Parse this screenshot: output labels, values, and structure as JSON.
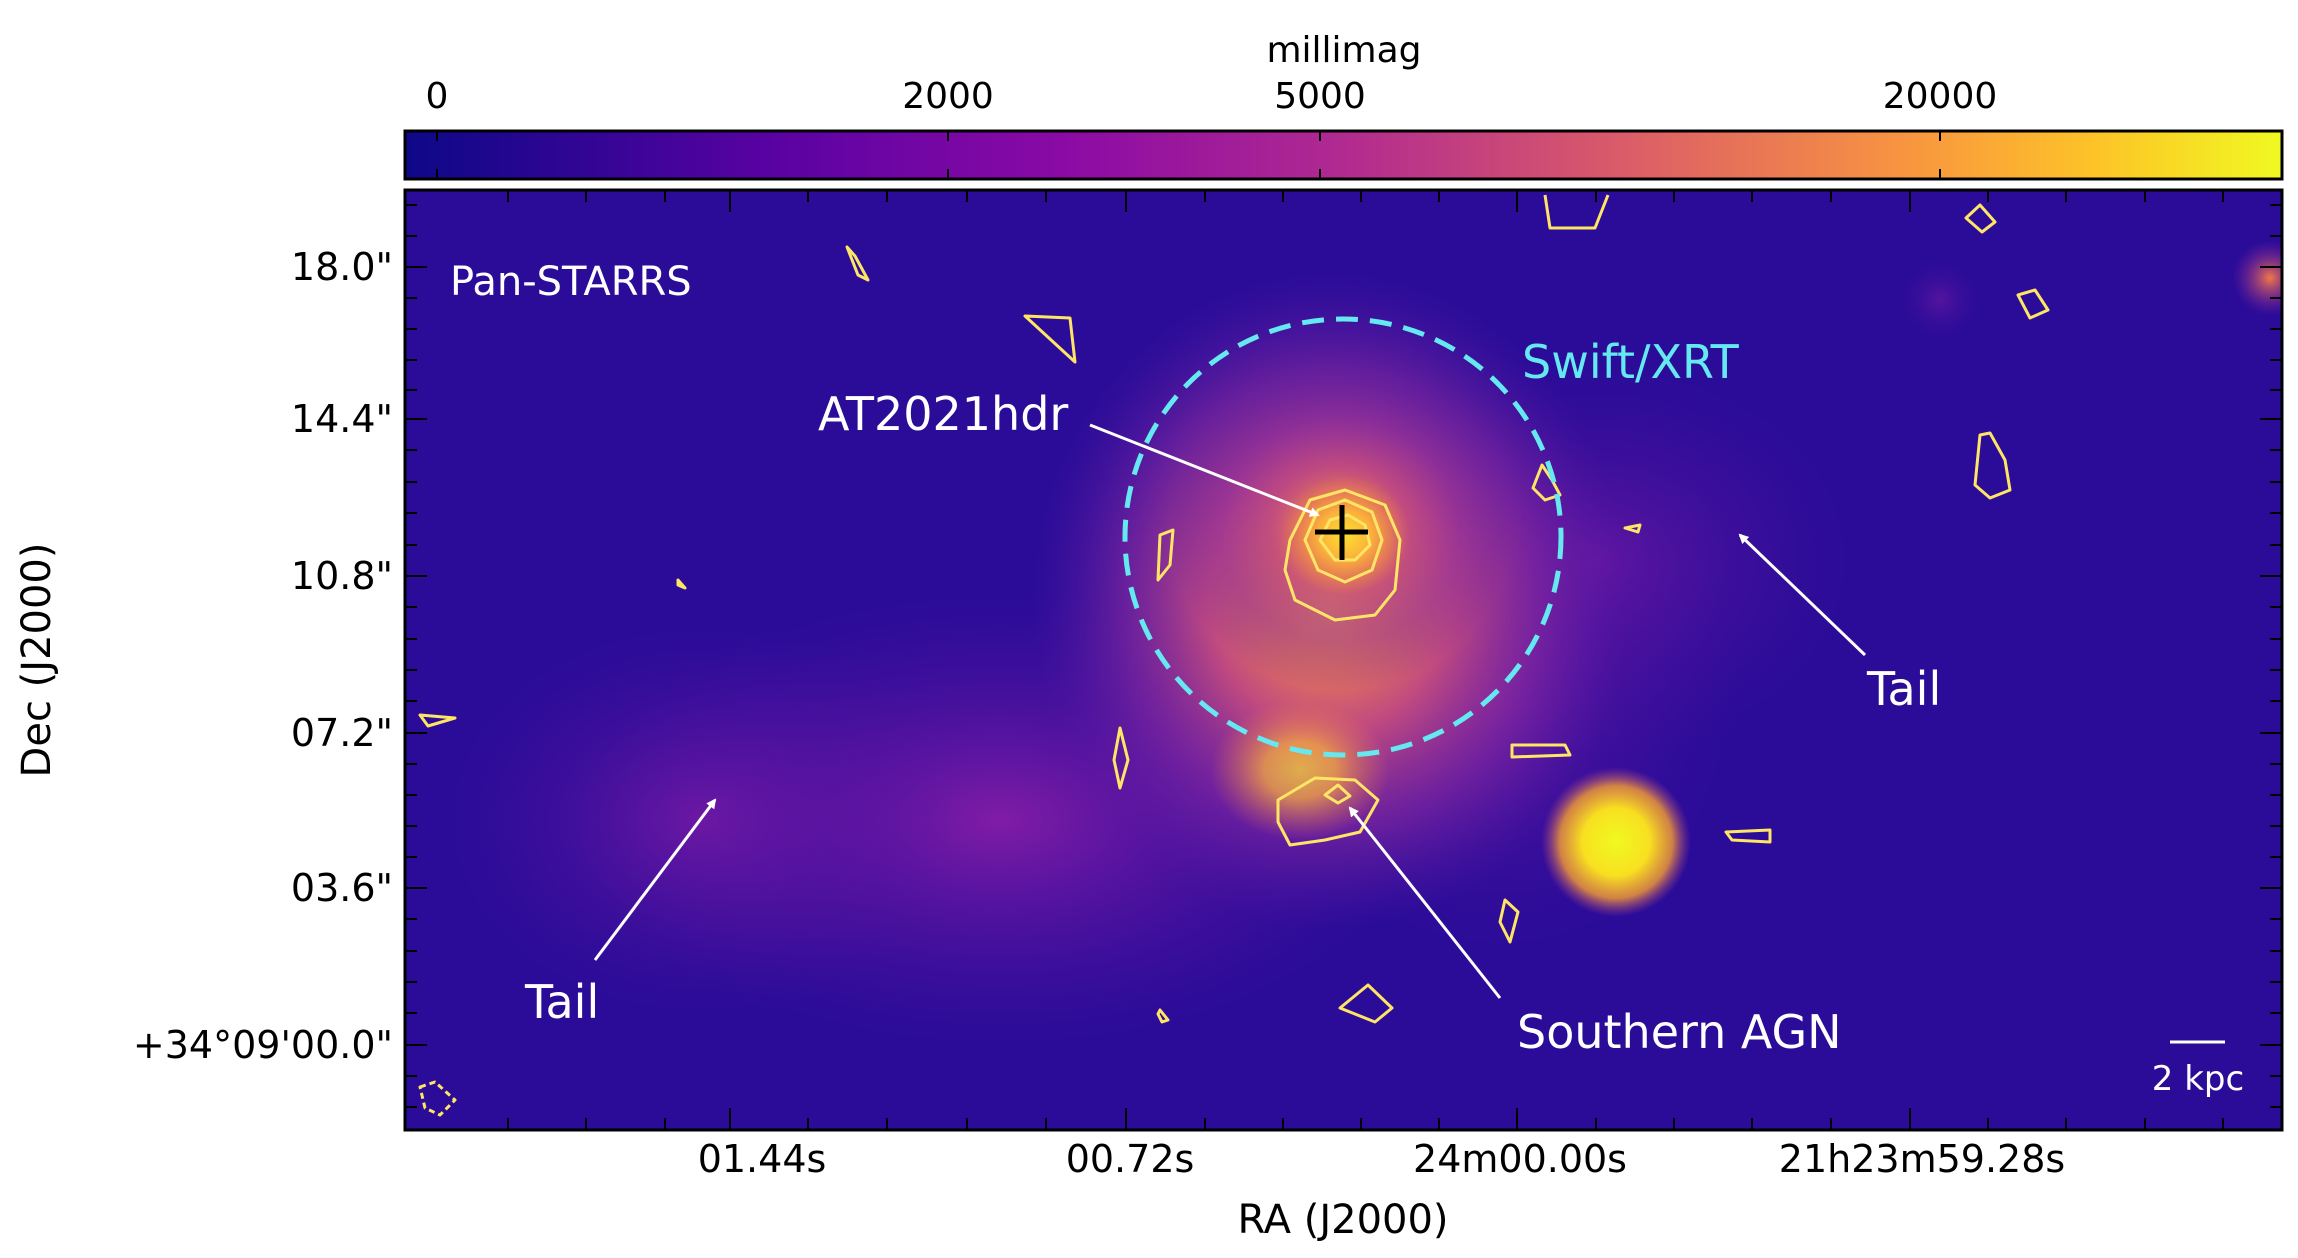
{
  "colorbar": {
    "label": "millimag",
    "ticks": [
      "0",
      "2000",
      "5000",
      "20000"
    ],
    "colors": [
      "#0d0887",
      "#6a00a8",
      "#b12a90",
      "#e16462",
      "#fca636",
      "#f0f921"
    ]
  },
  "axes": {
    "xlabel": "RA (J2000)",
    "ylabel": "Dec (J2000)",
    "xticks": [
      "01.44s",
      "00.72s",
      "24m00.00s",
      "21h23m59.28s"
    ],
    "yticks": [
      "18.0\"",
      "14.4\"",
      "10.8\"",
      "07.2\"",
      "03.6\"",
      "+34°09'00.0\""
    ]
  },
  "annotations": {
    "survey": "Pan-STARRS",
    "xrt": "Swift/XRT",
    "source": "AT2021hdr",
    "tail_right": "Tail",
    "tail_left": "Tail",
    "southern": "Southern AGN",
    "scalebar": "2 kpc"
  },
  "colors": {
    "xrt_circle": "#66e8f0",
    "contours": "#ffe566",
    "arrows": "#ffffff",
    "crosshair": "#000000",
    "background": "#2a0c98"
  }
}
